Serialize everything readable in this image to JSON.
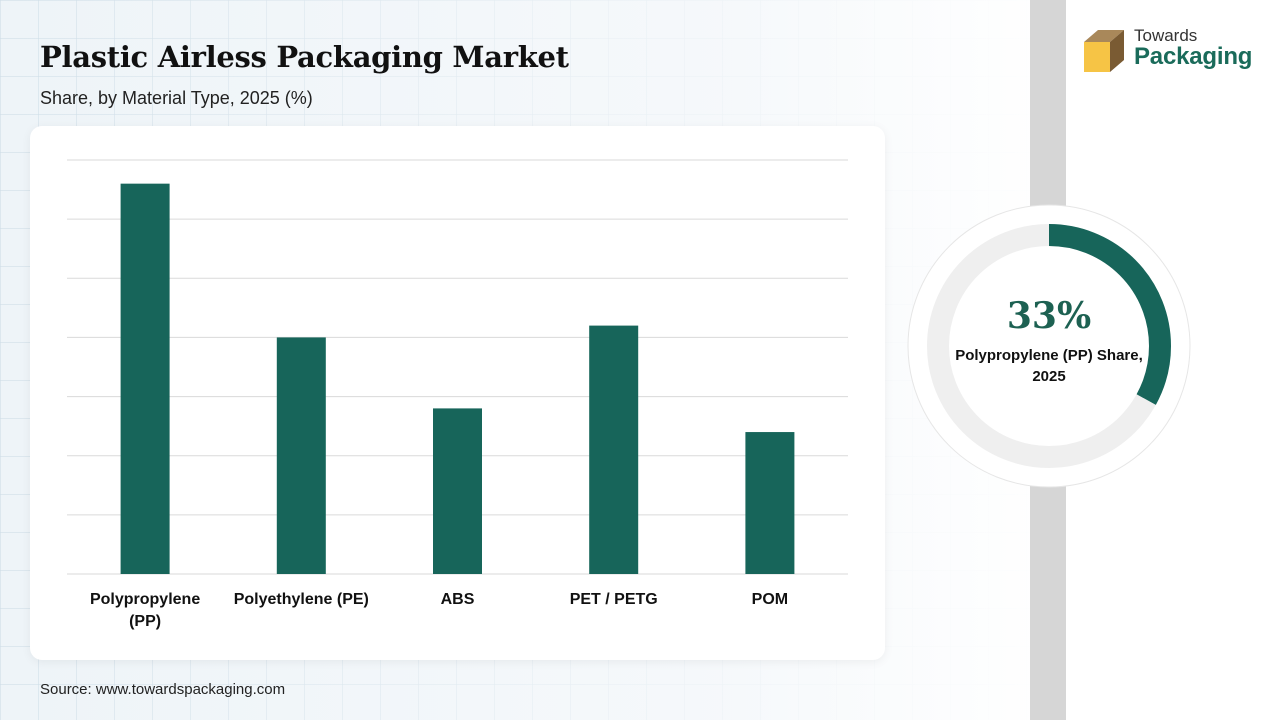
{
  "header": {
    "title": "Plastic Airless Packaging Market",
    "subtitle": "Share, by Material Type, 2025 (%)"
  },
  "brand": {
    "line1": "Towards",
    "line2": "Packaging",
    "color": "#1a6b5a"
  },
  "colors": {
    "bar": "#17655a",
    "donut_fill": "#17655a",
    "donut_track": "#efefef"
  },
  "chart_data": [
    {
      "type": "bar",
      "categories": [
        "Polypropylene (PP)",
        "Polyethylene (PE)",
        "ABS",
        "PET / PETG",
        "POM"
      ],
      "values": [
        33,
        20,
        14,
        21,
        12
      ],
      "ylim": [
        0,
        35
      ],
      "grid": true,
      "axis_tick_labels_shown": false
    },
    {
      "type": "pie",
      "style": "donut",
      "value": 33,
      "value_label": "33%",
      "caption": "Polypropylene (PP) Share, 2025"
    }
  ],
  "donut": {
    "value_text": "33%",
    "caption": "Polypropylene (PP) Share, 2025"
  },
  "footer": {
    "source": "Source: www.towardspackaging.com"
  }
}
